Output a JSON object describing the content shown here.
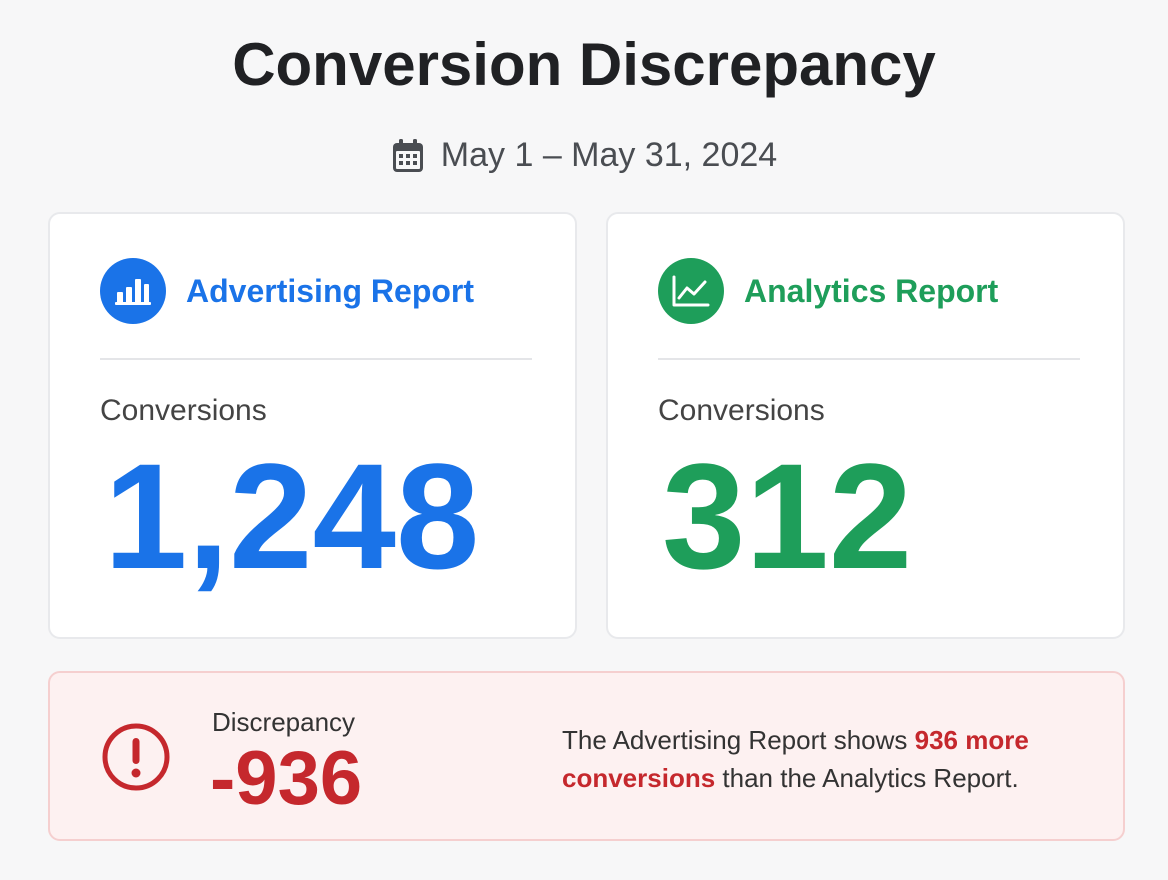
{
  "header": {
    "title": "Conversion Discrepancy",
    "date_range": "May 1 – May 31, 2024",
    "calendar_icon": "calendar-icon"
  },
  "colors": {
    "advertising": "#1a73e8",
    "analytics": "#1e9e5a",
    "discrepancy": "#c5282d"
  },
  "cards": {
    "advertising": {
      "icon": "bar-chart-icon",
      "title": "Advertising Report",
      "metric_label": "Conversions",
      "metric_value": "1,248"
    },
    "analytics": {
      "icon": "line-chart-icon",
      "title": "Analytics Report",
      "metric_label": "Conversions",
      "metric_value": "312"
    }
  },
  "discrepancy": {
    "icon": "alert-circle-icon",
    "label": "Discrepancy",
    "value": "-936",
    "message_prefix": "The Advertising Report shows ",
    "message_highlight": "936 more conversions",
    "message_suffix": " than the Analytics Report."
  }
}
